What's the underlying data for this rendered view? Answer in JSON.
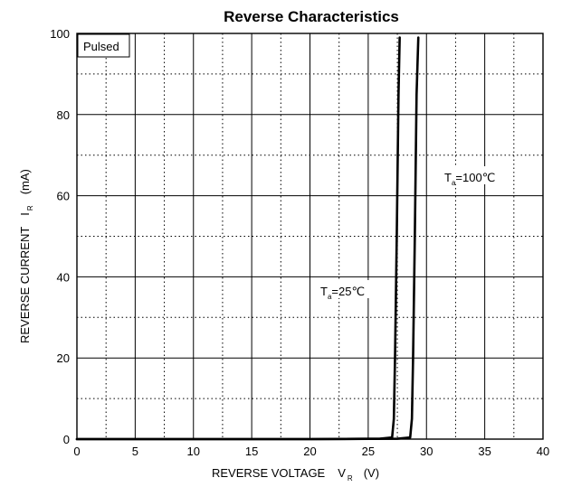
{
  "chart_data": {
    "type": "line",
    "title": "Reverse   Characteristics",
    "xlabel": "REVERSE VOLTAGE",
    "xlabel_symbol": "V",
    "xlabel_subscript": "R",
    "xlabel_unit": "(V)",
    "ylabel": "REVERSE CURRENT",
    "ylabel_symbol": "I",
    "ylabel_subscript": "R",
    "ylabel_unit": "(mA)",
    "xlim": [
      0,
      40
    ],
    "ylim": [
      0,
      100
    ],
    "x_ticks": [
      "0",
      "5",
      "10",
      "15",
      "20",
      "25",
      "30",
      "35",
      "40"
    ],
    "y_ticks": [
      "0",
      "20",
      "40",
      "60",
      "80",
      "100"
    ],
    "grid": {
      "major": "solid",
      "minor": "dotted",
      "x_major_step": 5,
      "x_minor_step": 2.5,
      "y_major_step": 20,
      "y_minor_step": 10
    },
    "annotation_box": "Pulsed",
    "series": [
      {
        "name": "Ta=25℃",
        "label_T": "T",
        "label_sub": "a",
        "label_rest": "=25℃",
        "x": [
          0,
          20,
          26,
          27.05,
          27.2,
          27.3,
          27.45,
          27.6,
          27.7
        ],
        "y": [
          0,
          0,
          0.1,
          0.4,
          5,
          20,
          50,
          85,
          99
        ],
        "color": "#000000"
      },
      {
        "name": "Ta=100℃",
        "label_T": "T",
        "label_sub": "a",
        "label_rest": "=100℃",
        "x": [
          0,
          20,
          27.5,
          28.6,
          28.75,
          28.85,
          29.0,
          29.15,
          29.3
        ],
        "y": [
          0,
          0,
          0.1,
          0.4,
          5,
          20,
          50,
          85,
          99
        ],
        "color": "#000000"
      }
    ]
  }
}
